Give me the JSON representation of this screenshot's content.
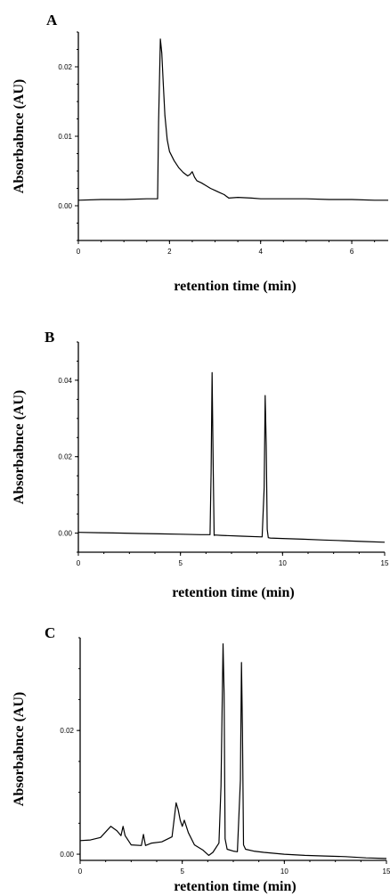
{
  "chart_data": [
    {
      "type": "line",
      "panel": "A",
      "xlabel": "retention time (min)",
      "ylabel": "Absorbabnce (AU)",
      "xlim": [
        0,
        6.8
      ],
      "ylim": [
        -0.005,
        0.025
      ],
      "x_ticks": [
        0,
        2,
        4,
        6
      ],
      "y_ticks": [
        0.0,
        0.01,
        0.02
      ],
      "x_tick_labels": [
        "0",
        "2",
        "4",
        "6"
      ],
      "y_tick_labels": [
        "0.00",
        "0.01",
        "0.02"
      ],
      "series": [
        {
          "x": [
            0,
            0.5,
            1.0,
            1.5,
            1.7,
            1.74,
            1.76,
            1.8,
            1.83,
            1.86,
            1.9,
            1.95,
            2.0,
            2.1,
            2.2,
            2.3,
            2.4,
            2.45,
            2.5,
            2.55,
            2.6,
            2.7,
            2.8,
            2.9,
            3.0,
            3.1,
            3.2,
            3.3,
            3.5,
            3.8,
            4.0,
            4.5,
            5.0,
            5.5,
            6.0,
            6.5,
            6.8
          ],
          "y": [
            0.0008,
            0.0009,
            0.0009,
            0.001,
            0.001,
            0.001,
            0.012,
            0.024,
            0.022,
            0.018,
            0.013,
            0.0095,
            0.0078,
            0.0065,
            0.0055,
            0.0048,
            0.0043,
            0.0045,
            0.0049,
            0.0041,
            0.0036,
            0.0033,
            0.0029,
            0.0025,
            0.0022,
            0.0019,
            0.0016,
            0.0011,
            0.0012,
            0.0011,
            0.001,
            0.001,
            0.001,
            0.0009,
            0.0009,
            0.0008,
            0.0008
          ]
        }
      ]
    },
    {
      "type": "line",
      "panel": "B",
      "xlabel": "retention time (min)",
      "ylabel": "Absorbabnce (AU)",
      "xlim": [
        0,
        15
      ],
      "ylim": [
        -0.005,
        0.05
      ],
      "x_ticks": [
        0,
        5,
        10,
        15
      ],
      "y_ticks": [
        0.0,
        0.02,
        0.04
      ],
      "x_tick_labels": [
        "0",
        "5",
        "10",
        "15"
      ],
      "y_tick_labels": [
        "0.00",
        "0.02",
        "0.04"
      ],
      "series": [
        {
          "x": [
            0,
            1,
            2,
            3,
            4,
            5,
            6,
            6.45,
            6.5,
            6.55,
            6.6,
            6.65,
            6.7,
            7,
            8,
            9,
            9.1,
            9.15,
            9.2,
            9.25,
            9.3,
            9.4,
            10,
            11,
            12,
            13,
            14,
            15
          ],
          "y": [
            0.0002,
            0.0001,
            0.0,
            -0.0001,
            -0.0002,
            -0.0003,
            -0.0004,
            -0.0004,
            0.016,
            0.042,
            0.018,
            -0.0006,
            -0.0005,
            -0.0006,
            -0.0008,
            -0.001,
            0.012,
            0.036,
            0.023,
            0.001,
            -0.0012,
            -0.0013,
            -0.0014,
            -0.0016,
            -0.0018,
            -0.002,
            -0.0022,
            -0.0024
          ]
        }
      ]
    },
    {
      "type": "line",
      "panel": "C",
      "xlabel": "retention time (min)",
      "ylabel": "Absorbabnce (AU)",
      "xlim": [
        0,
        15
      ],
      "ylim": [
        -0.001,
        0.035
      ],
      "x_ticks": [
        0,
        5,
        10,
        15
      ],
      "y_ticks": [
        0.0,
        0.02
      ],
      "x_tick_labels": [
        "0",
        "5",
        "10",
        "15"
      ],
      "y_tick_labels": [
        "0.00",
        "0.02"
      ],
      "series": [
        {
          "x": [
            0,
            0.5,
            1.0,
            1.5,
            1.8,
            2.0,
            2.1,
            2.2,
            2.5,
            3.0,
            3.1,
            3.2,
            3.5,
            4.0,
            4.5,
            4.7,
            4.8,
            4.9,
            5.0,
            5.1,
            5.3,
            5.6,
            6.0,
            6.3,
            6.5,
            6.8,
            6.9,
            7.0,
            7.05,
            7.1,
            7.2,
            7.5,
            7.7,
            7.85,
            7.9,
            7.95,
            8.0,
            8.1,
            8.5,
            9,
            10,
            11,
            12,
            13,
            14,
            15
          ],
          "y": [
            0.0022,
            0.0023,
            0.0027,
            0.0045,
            0.0038,
            0.003,
            0.0045,
            0.003,
            0.0015,
            0.0014,
            0.0032,
            0.0014,
            0.0018,
            0.002,
            0.0028,
            0.0083,
            0.0072,
            0.0055,
            0.0045,
            0.0055,
            0.0035,
            0.0015,
            0.0007,
            -0.0002,
            0.0003,
            0.0018,
            0.011,
            0.034,
            0.026,
            0.0025,
            0.0008,
            0.0005,
            0.0004,
            0.012,
            0.031,
            0.02,
            0.0015,
            0.0008,
            0.0005,
            0.0003,
            0.0,
            -0.0002,
            -0.0003,
            -0.0004,
            -0.0006,
            -0.0007
          ]
        }
      ]
    }
  ]
}
